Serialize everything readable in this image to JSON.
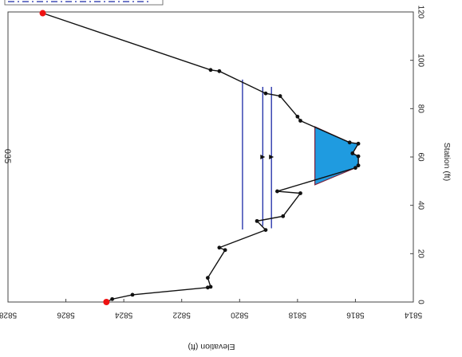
{
  "chart_data": {
    "type": "line",
    "title": "035",
    "xlabel": "Station (ft)",
    "ylabel": "Elevation (ft)",
    "orientation": "rotated-180",
    "xlim": [
      0,
      120
    ],
    "ylim": [
      5814,
      5828
    ],
    "x_ticks": [
      0,
      20,
      40,
      60,
      80,
      100,
      120
    ],
    "y_ticks": [
      5814,
      5816,
      5818,
      5820,
      5822,
      5824,
      5826,
      5828
    ],
    "grid": false,
    "colors": {
      "ground": "#111111",
      "water_fill": "#1f9be0",
      "water_edge": "#7a1f3a",
      "water_levels": "#1c2aa6",
      "bank_markers": "#ee1111"
    },
    "series": [
      {
        "role": "ground",
        "x": [
          0,
          1.2,
          3,
          6,
          6.3,
          10,
          21.5,
          22.5,
          29.8,
          33.5,
          35.5,
          45,
          45.8,
          55.5,
          56.5,
          60.3,
          61.5,
          65.5,
          66,
          75,
          76.7,
          85.2,
          86.3,
          95.5,
          96,
          119.5
        ],
        "y": [
          5824.6,
          5824.4,
          5823.7,
          5821.1,
          5821.0,
          5821.1,
          5820.5,
          5820.7,
          5819.1,
          5819.4,
          5818.5,
          5817.9,
          5818.7,
          5816.0,
          5815.9,
          5815.9,
          5816.1,
          5815.9,
          5816.2,
          5817.9,
          5818.0,
          5818.6,
          5819.1,
          5820.7,
          5821.0,
          5826.8
        ]
      },
      {
        "role": "bank-stations",
        "x": [
          0,
          119.5
        ],
        "y": [
          5824.6,
          5826.8
        ]
      },
      {
        "role": "water",
        "polygon_x": [
          48.5,
          72.5,
          66,
          65.5,
          61.5,
          60.3,
          56.5,
          55.5
        ],
        "polygon_y": [
          5817.4,
          5817.4,
          5816.2,
          5815.9,
          5816.1,
          5815.9,
          5815.9,
          5816.0
        ]
      },
      {
        "role": "water-surface-levels",
        "lines": [
          {
            "x": [
              89,
              30.5
            ],
            "y": [
              5818.9,
              5818.9
            ]
          },
          {
            "x": [
              89,
              31.5
            ],
            "y": [
              5819.2,
              5819.2
            ]
          },
          {
            "x": [
              92,
              30.0
            ],
            "y": [
              5819.9,
              5819.9
            ]
          }
        ],
        "arrows": [
          {
            "x": 60,
            "y": 5818.9
          },
          {
            "x": 60,
            "y": 5819.2
          }
        ]
      }
    ]
  }
}
